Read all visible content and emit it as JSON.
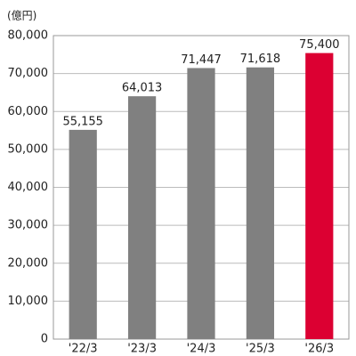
{
  "chart_data": {
    "type": "bar",
    "unit_label": "(億円)",
    "categories": [
      "'22/3",
      "'23/3",
      "'24/3",
      "'25/3",
      "'26/3"
    ],
    "values": [
      55155,
      64013,
      71447,
      71618,
      75400
    ],
    "value_labels": [
      "55,155",
      "64,013",
      "71,447",
      "71,618",
      "75,400"
    ],
    "colors": [
      "#808080",
      "#808080",
      "#808080",
      "#808080",
      "#dc0032"
    ],
    "ylim": [
      0,
      80000
    ],
    "yticks": [
      0,
      {
        "value": 10000,
        "label": "10,000"
      },
      {
        "value": 20000,
        "label": "20,000"
      },
      {
        "value": 30000,
        "label": "30,000"
      },
      {
        "value": 40000,
        "label": "40,000"
      },
      {
        "value": 50000,
        "label": "50,000"
      },
      {
        "value": 60000,
        "label": "60,000"
      },
      {
        "value": 70000,
        "label": "70,000"
      },
      {
        "value": 80000,
        "label": "80,000"
      }
    ],
    "grid": true
  }
}
